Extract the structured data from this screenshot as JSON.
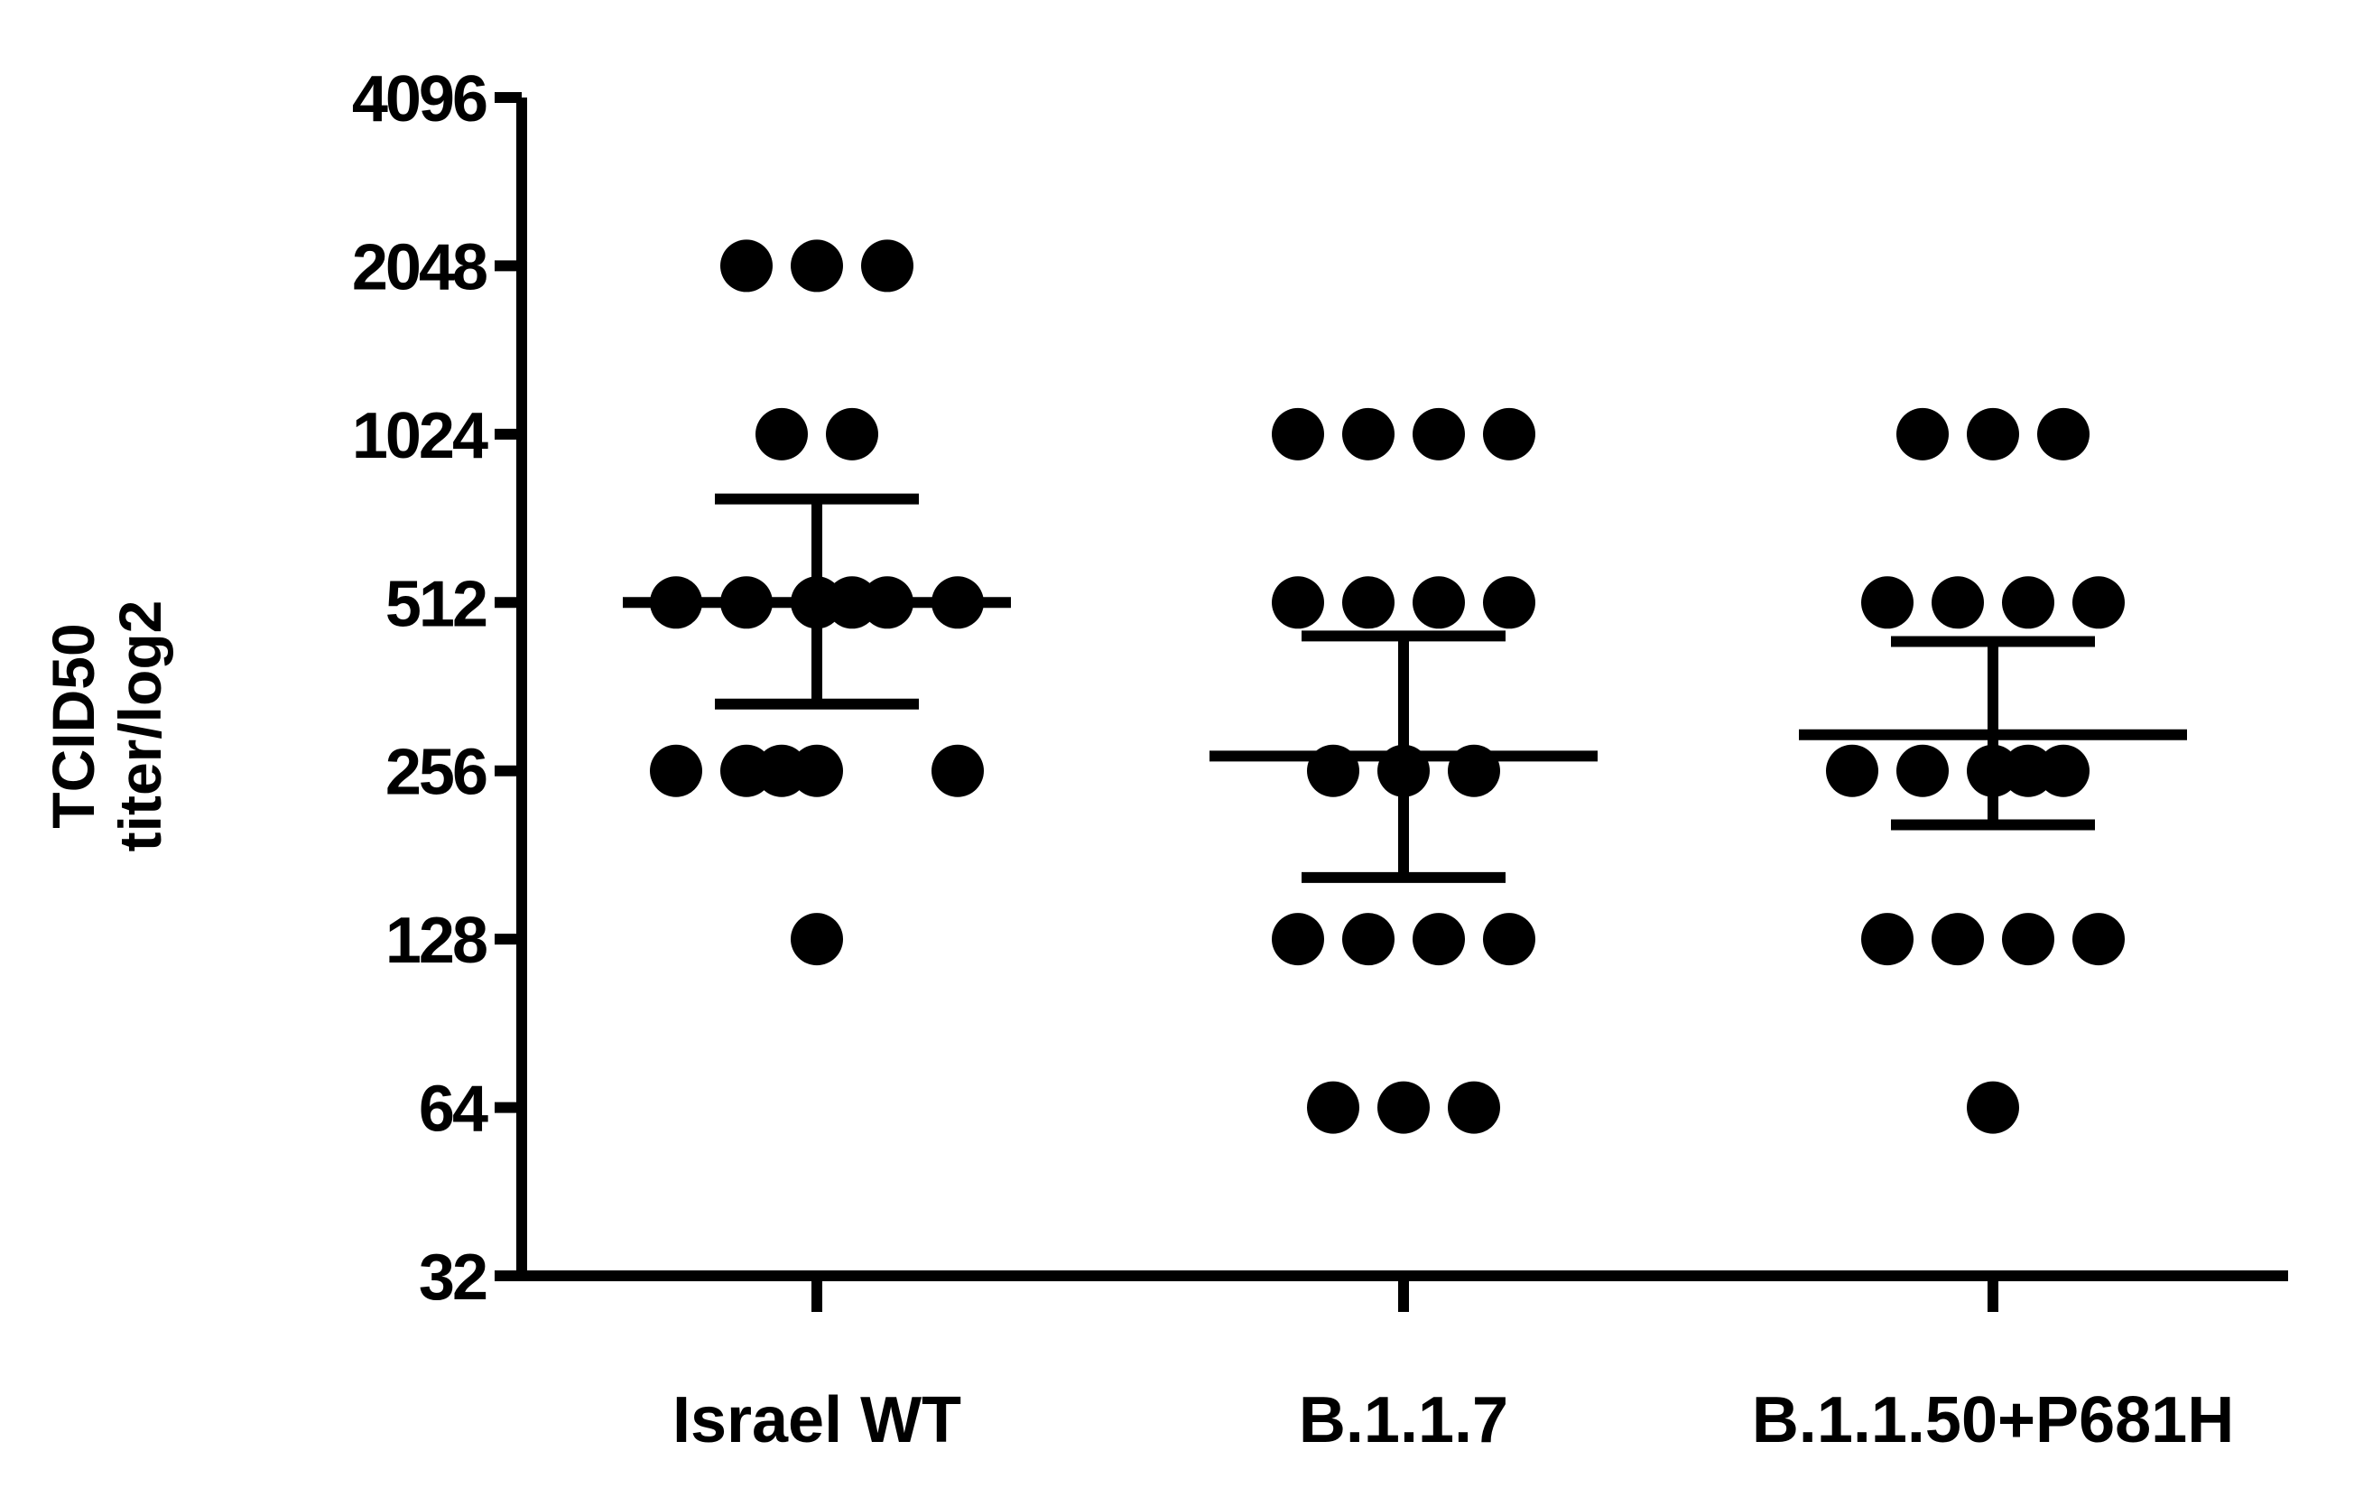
{
  "chart_data": {
    "type": "scatter",
    "title": "",
    "xlabel": "",
    "ylabel": [
      "TCID50",
      "titer/log2"
    ],
    "y_scale": "log2",
    "ylim": [
      32,
      4096
    ],
    "y_ticks": [
      32,
      64,
      128,
      256,
      512,
      1024,
      2048,
      4096
    ],
    "y_tick_labels": [
      "32",
      "64",
      "128",
      "256",
      "512",
      "1024",
      "2048",
      "4096"
    ],
    "categories": [
      "Israel WT",
      "B.1.1.7",
      "B.1.1.50+P681H"
    ],
    "grid": false,
    "legend": "none",
    "marker_color": "#000000",
    "series": [
      {
        "category": "Israel WT",
        "points": [
          2048,
          2048,
          2048,
          1024,
          1024,
          512,
          512,
          512,
          512,
          512,
          512,
          256,
          256,
          256,
          256,
          256,
          128
        ],
        "mean": 512,
        "error_low": 337,
        "error_high": 784
      },
      {
        "category": "B.1.1.7",
        "points": [
          1024,
          1024,
          1024,
          1024,
          512,
          512,
          512,
          512,
          256,
          256,
          256,
          128,
          128,
          128,
          128,
          64,
          64,
          64
        ],
        "mean": 272,
        "error_low": 165,
        "error_high": 446
      },
      {
        "category": "B.1.1.50+P681H",
        "points": [
          1024,
          1024,
          1024,
          512,
          512,
          512,
          512,
          256,
          256,
          256,
          256,
          256,
          128,
          128,
          128,
          128,
          64
        ],
        "mean": 297,
        "error_low": 205,
        "error_high": 436
      }
    ]
  }
}
